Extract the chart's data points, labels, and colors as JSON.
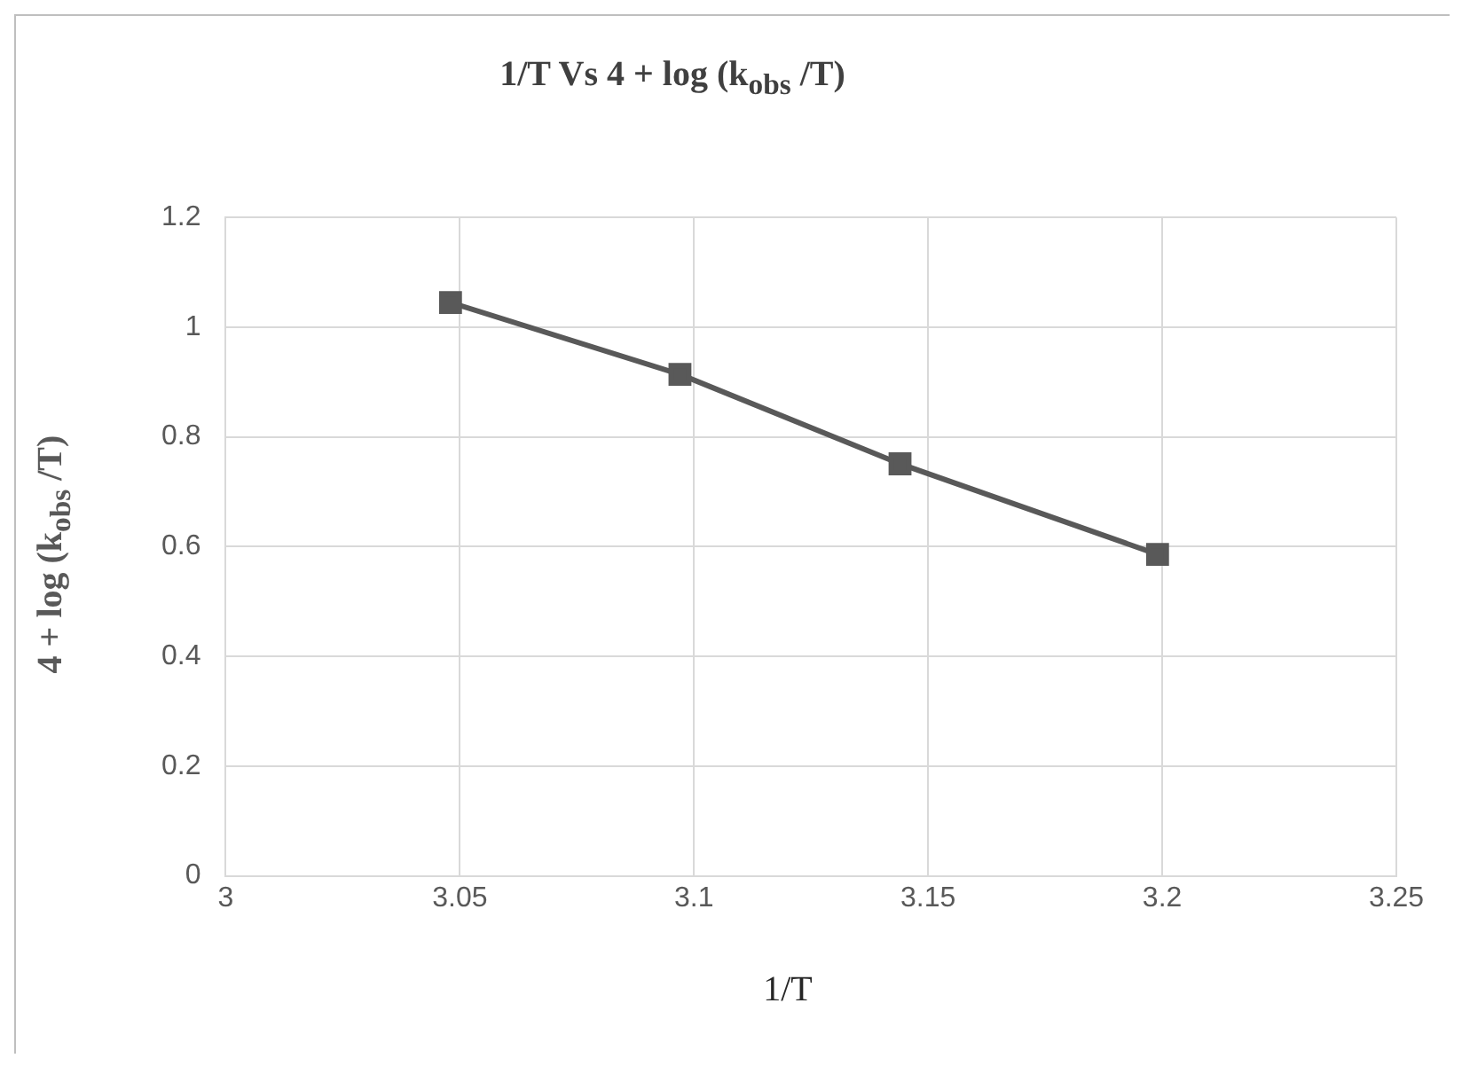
{
  "chart_data": {
    "type": "line",
    "title": "1/T Vs 4 + log (k$_{obs}$ /T)",
    "xlabel": "1/T",
    "ylabel": "4 + log (k$_{obs}$ /T)",
    "x": [
      3.048,
      3.097,
      3.144,
      3.199
    ],
    "series": [
      {
        "color": "#595959",
        "values": [
          1.045,
          0.914,
          0.751,
          0.586
        ]
      }
    ],
    "xlim": [
      3,
      3.25
    ],
    "xticks": [
      3,
      3.05,
      3.1,
      3.15,
      3.2,
      3.25
    ],
    "ylim": [
      0,
      1.2
    ],
    "yticks": [
      0,
      0.2,
      0.4,
      0.6,
      0.8,
      1,
      1.2
    ],
    "grid": true,
    "marker": "square",
    "line_style": "solid"
  }
}
